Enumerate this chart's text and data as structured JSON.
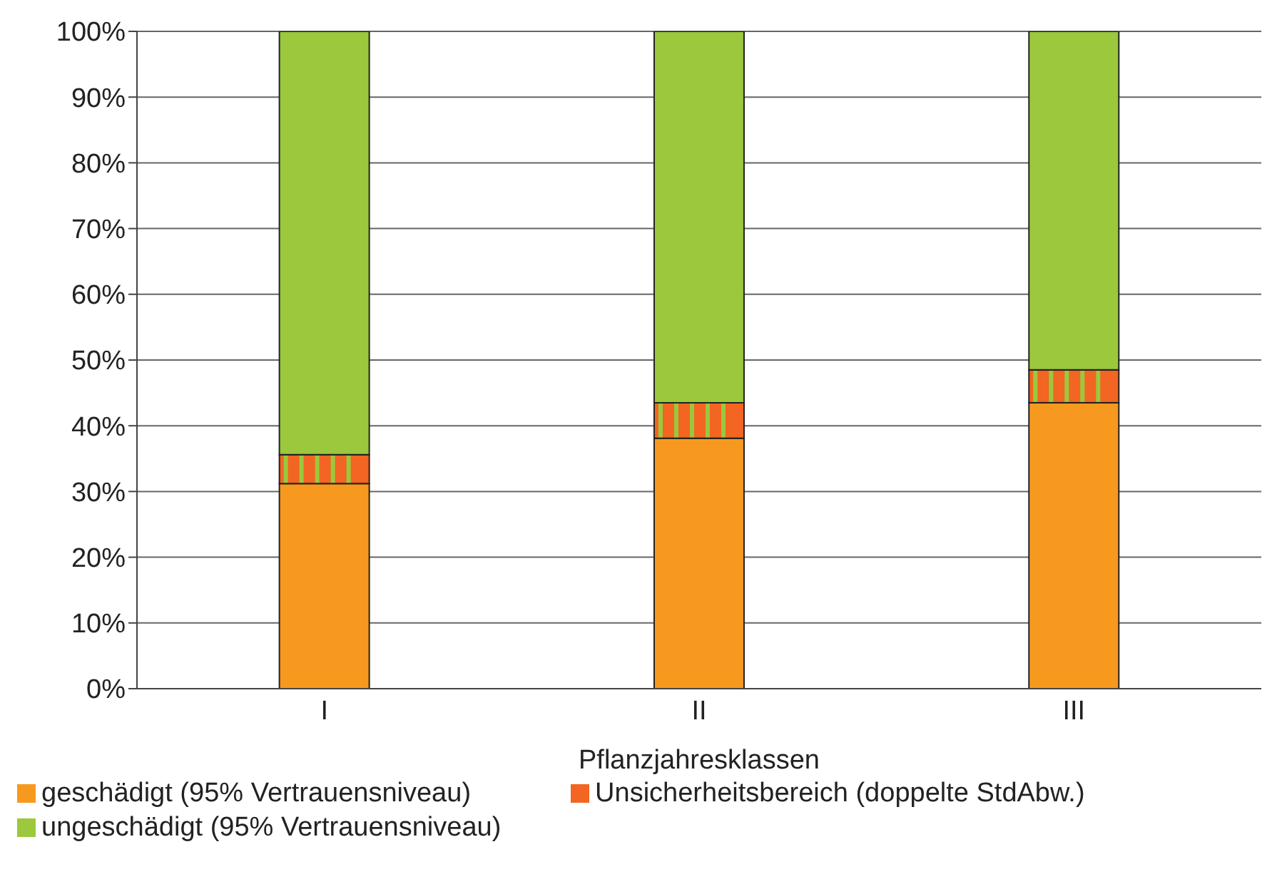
{
  "chart_data": {
    "type": "bar",
    "stacked": true,
    "xlabel": "Pflanzjahresklassen",
    "categories": [
      "I",
      "II",
      "III"
    ],
    "series": [
      {
        "name": "geschädigt (95% Vertrauensniveau)",
        "color": "#f7991e",
        "values": [
          31.2,
          38.1,
          43.5
        ]
      },
      {
        "name": "Unsicherheitsbereich (doppelte StdAbw.)",
        "color": "#f26522",
        "values": [
          4.4,
          5.4,
          5.0
        ]
      },
      {
        "name": "ungeschädigt (95% Vertrauensniveau)",
        "color": "#9bc83c",
        "values": [
          64.4,
          56.5,
          51.5
        ]
      }
    ],
    "ylim": [
      0,
      100
    ],
    "yticks": [
      {
        "value": 0,
        "label": "0%"
      },
      {
        "value": 10,
        "label": "10%"
      },
      {
        "value": 20,
        "label": "20%"
      },
      {
        "value": 30,
        "label": "30%"
      },
      {
        "value": 40,
        "label": "40%"
      },
      {
        "value": 50,
        "label": "50%"
      },
      {
        "value": 60,
        "label": "60%"
      },
      {
        "value": 70,
        "label": "70%"
      },
      {
        "value": 80,
        "label": "80%"
      },
      {
        "value": 90,
        "label": "90%"
      },
      {
        "value": 100,
        "label": "100%"
      }
    ],
    "grid": "y",
    "legend": "bottom"
  }
}
